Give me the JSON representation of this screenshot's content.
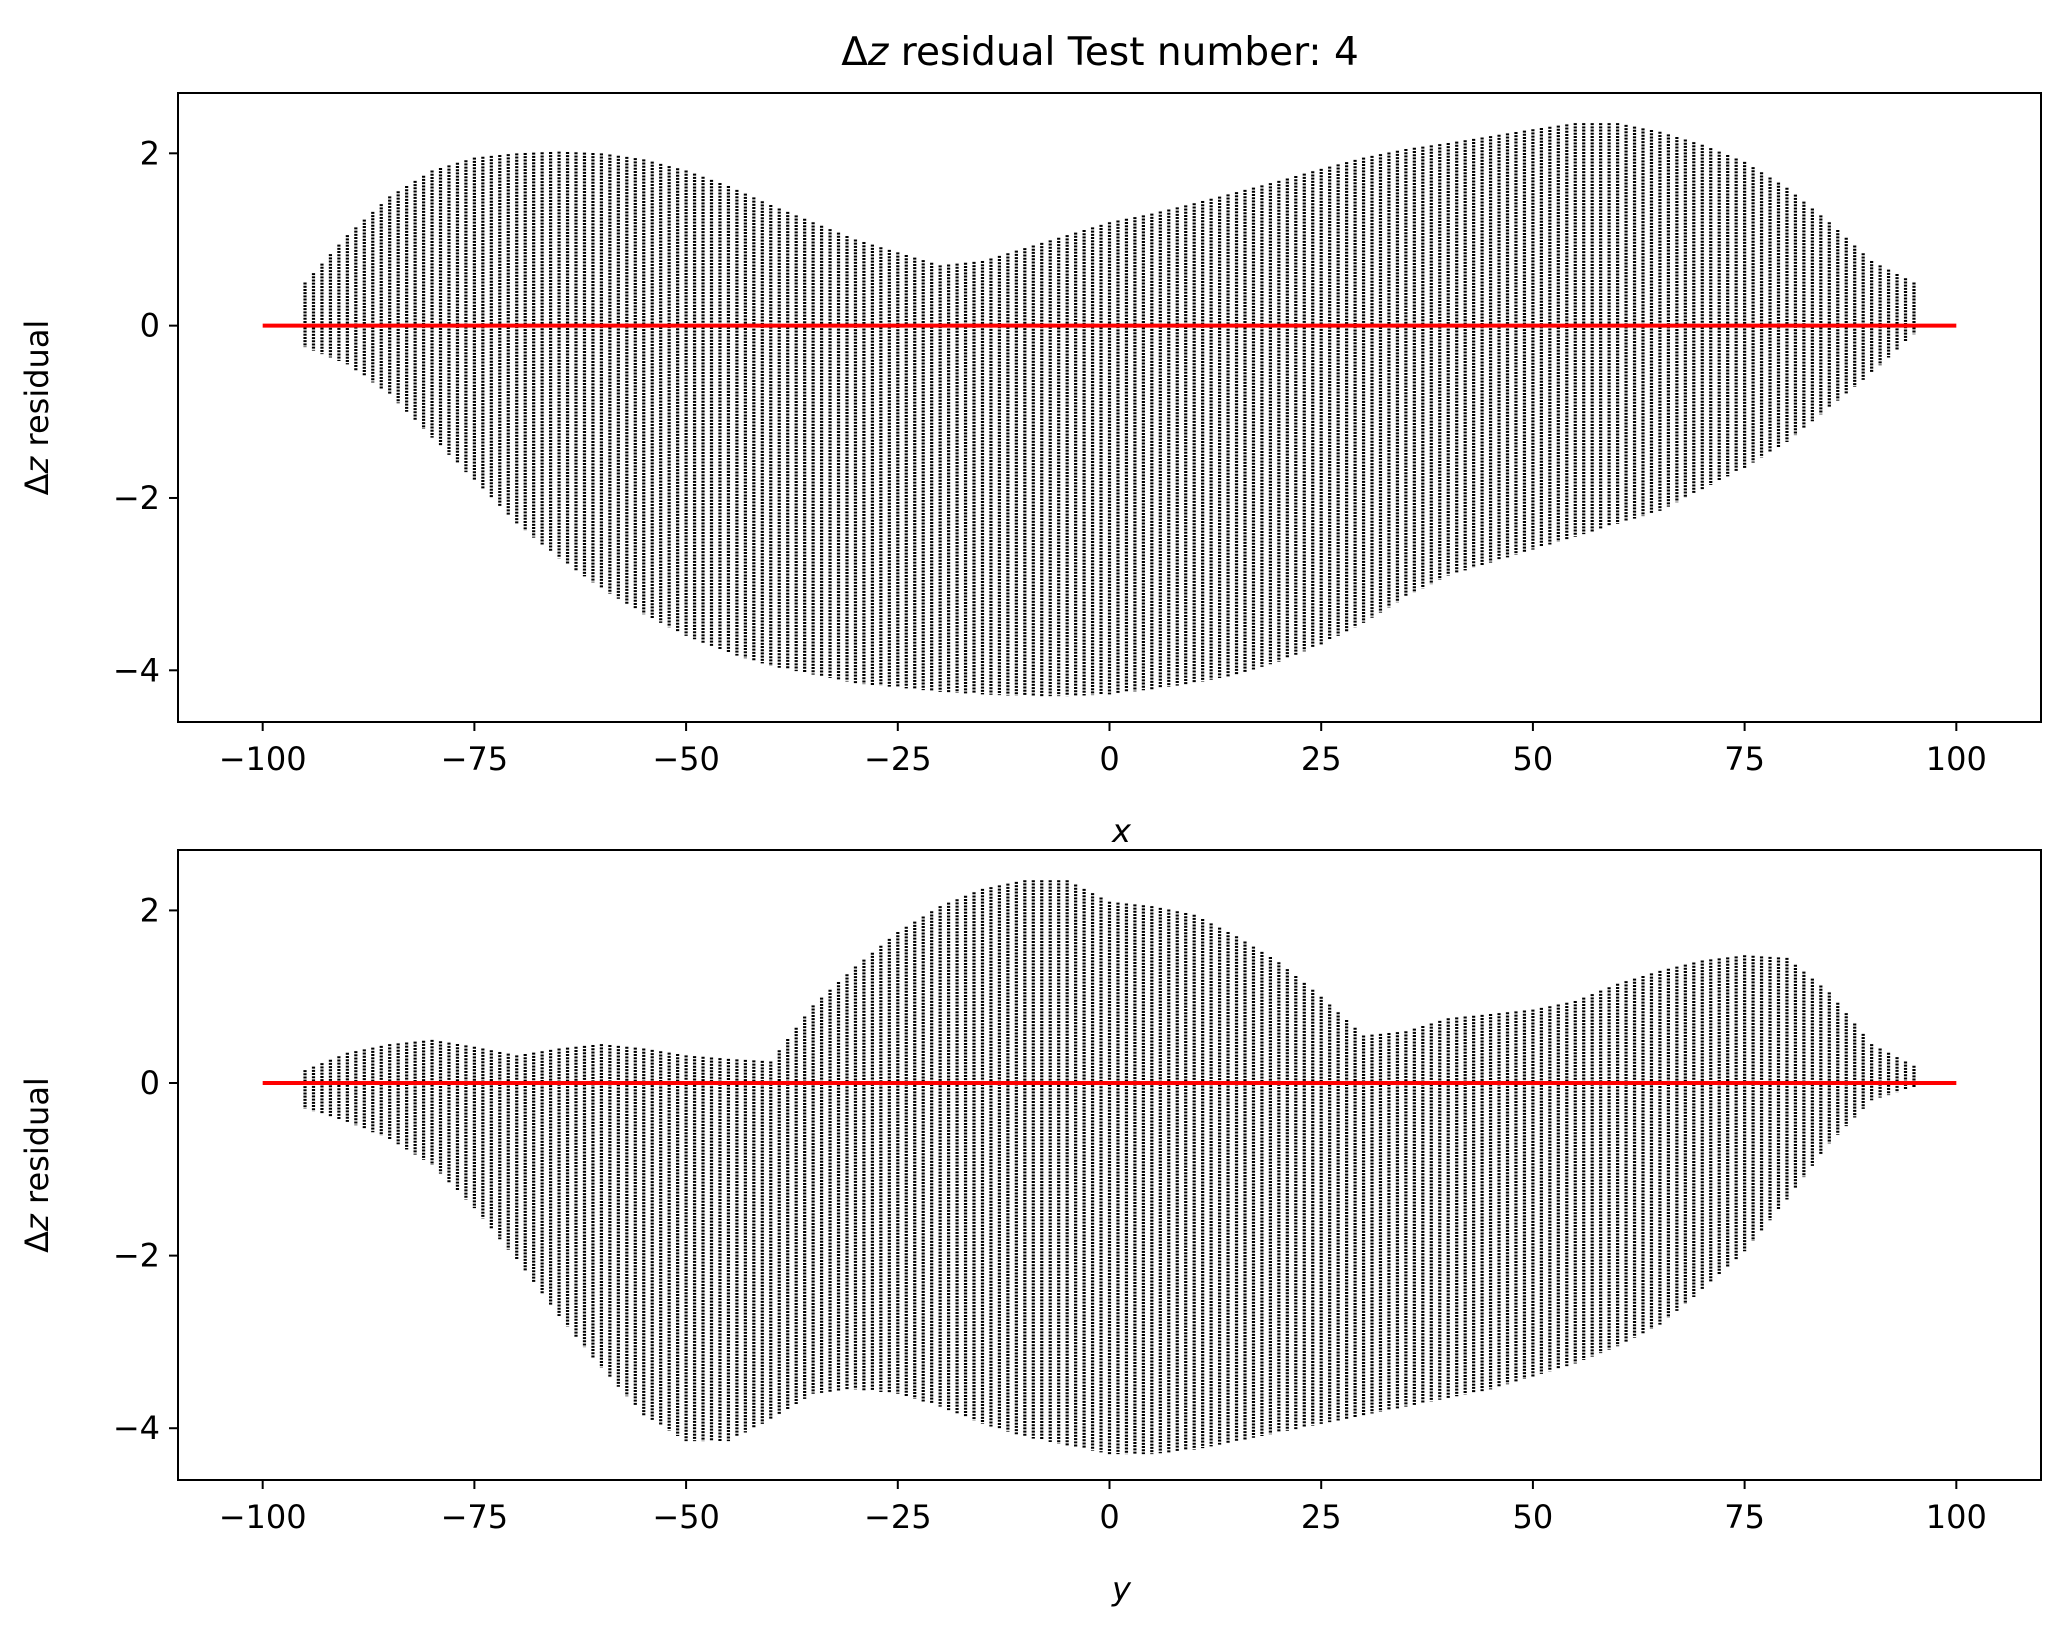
{
  "title_prefix": "Δ",
  "title_var": "z",
  "title_suffix": " residual Test number: 4",
  "colors": {
    "points": "#000000",
    "zero_line": "#ff0000",
    "background": "#ffffff"
  },
  "chart_data": [
    {
      "type": "scatter",
      "title": "Δz residual Test number: 4",
      "xlabel": "x",
      "ylabel": "Δz residual",
      "xlim": [
        -110,
        110
      ],
      "ylim": [
        -4.6,
        2.7
      ],
      "xticks": [
        -100,
        -75,
        -50,
        -25,
        0,
        25,
        50,
        75,
        100
      ],
      "yticks": [
        -4,
        -2,
        0,
        2
      ],
      "grid": false,
      "x_column_step": 1,
      "x_range": [
        -95,
        95
      ],
      "envelope": {
        "x": [
          -95,
          -90,
          -85,
          -80,
          -75,
          -70,
          -65,
          -60,
          -55,
          -50,
          -45,
          -40,
          -35,
          -30,
          -25,
          -20,
          -15,
          -10,
          -5,
          0,
          5,
          10,
          15,
          20,
          25,
          30,
          35,
          40,
          45,
          50,
          55,
          60,
          65,
          70,
          75,
          80,
          85,
          90,
          95
        ],
        "upper": [
          0.5,
          1.05,
          1.5,
          1.8,
          1.95,
          2.0,
          2.02,
          2.0,
          1.93,
          1.8,
          1.62,
          1.4,
          1.2,
          1.0,
          0.85,
          0.7,
          0.75,
          0.9,
          1.05,
          1.2,
          1.3,
          1.42,
          1.55,
          1.68,
          1.82,
          1.95,
          2.05,
          2.12,
          2.2,
          2.28,
          2.35,
          2.35,
          2.25,
          2.1,
          1.9,
          1.6,
          1.2,
          0.75,
          0.5
        ],
        "lower": [
          -0.25,
          -0.45,
          -0.8,
          -1.3,
          -1.8,
          -2.3,
          -2.7,
          -3.05,
          -3.35,
          -3.6,
          -3.8,
          -3.95,
          -4.05,
          -4.15,
          -4.2,
          -4.25,
          -4.28,
          -4.3,
          -4.3,
          -4.28,
          -4.22,
          -4.15,
          -4.05,
          -3.9,
          -3.7,
          -3.45,
          -3.15,
          -2.9,
          -2.75,
          -2.6,
          -2.45,
          -2.3,
          -2.15,
          -1.9,
          -1.65,
          -1.35,
          -0.95,
          -0.55,
          -0.1
        ]
      },
      "reference_line": {
        "y": 0,
        "x_from": -100,
        "x_to": 100,
        "color": "#ff0000"
      }
    },
    {
      "type": "scatter",
      "xlabel": "y",
      "ylabel": "Δz residual",
      "xlim": [
        -110,
        110
      ],
      "ylim": [
        -4.6,
        2.7
      ],
      "xticks": [
        -100,
        -75,
        -50,
        -25,
        0,
        25,
        50,
        75,
        100
      ],
      "yticks": [
        -4,
        -2,
        0,
        2
      ],
      "grid": false,
      "x_column_step": 1,
      "x_range": [
        -95,
        95
      ],
      "envelope": {
        "x": [
          -95,
          -90,
          -85,
          -80,
          -75,
          -70,
          -65,
          -60,
          -55,
          -50,
          -45,
          -40,
          -35,
          -30,
          -25,
          -20,
          -15,
          -10,
          -5,
          0,
          5,
          10,
          15,
          20,
          25,
          30,
          35,
          40,
          45,
          50,
          55,
          60,
          65,
          70,
          75,
          80,
          85,
          90,
          95
        ],
        "upper": [
          0.15,
          0.35,
          0.45,
          0.5,
          0.42,
          0.32,
          0.4,
          0.45,
          0.4,
          0.32,
          0.28,
          0.25,
          0.9,
          1.35,
          1.75,
          2.05,
          2.25,
          2.35,
          2.35,
          2.1,
          2.05,
          1.95,
          1.7,
          1.4,
          1.0,
          0.55,
          0.6,
          0.75,
          0.8,
          0.85,
          0.95,
          1.15,
          1.3,
          1.42,
          1.48,
          1.45,
          1.05,
          0.45,
          0.2
        ],
        "lower": [
          -0.3,
          -0.45,
          -0.65,
          -0.95,
          -1.45,
          -2.05,
          -2.7,
          -3.3,
          -3.85,
          -4.15,
          -4.15,
          -3.9,
          -3.6,
          -3.55,
          -3.6,
          -3.75,
          -3.95,
          -4.1,
          -4.2,
          -4.3,
          -4.3,
          -4.25,
          -4.15,
          -4.05,
          -3.95,
          -3.85,
          -3.75,
          -3.65,
          -3.55,
          -3.4,
          -3.25,
          -3.05,
          -2.8,
          -2.4,
          -1.95,
          -1.35,
          -0.7,
          -0.2,
          -0.05
        ]
      },
      "reference_line": {
        "y": 0,
        "x_from": -100,
        "x_to": 100,
        "color": "#ff0000"
      }
    }
  ]
}
